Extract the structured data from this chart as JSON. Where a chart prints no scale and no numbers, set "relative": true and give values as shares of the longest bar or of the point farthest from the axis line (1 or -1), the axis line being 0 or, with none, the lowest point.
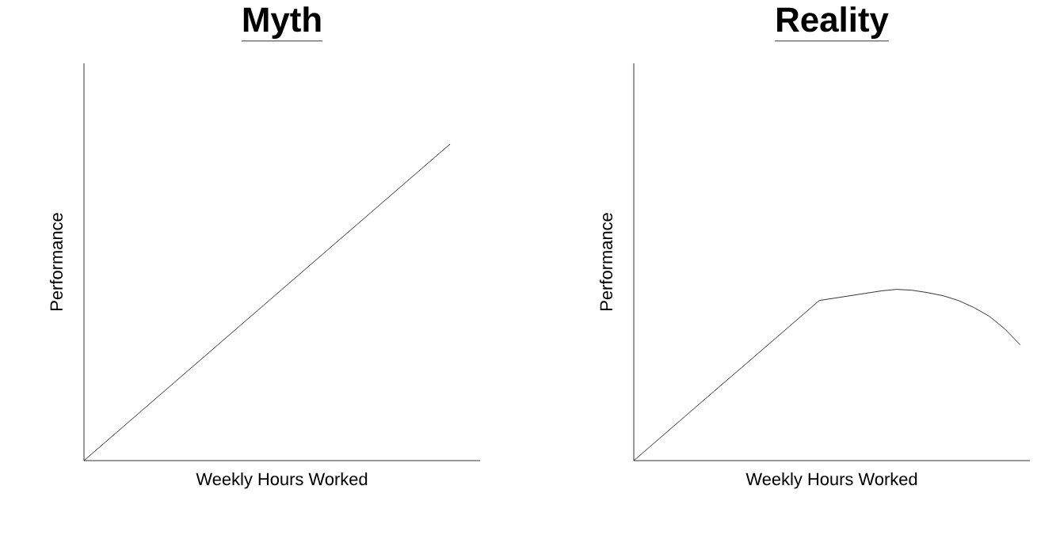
{
  "chart_data": [
    {
      "type": "line",
      "title": "Myth",
      "xlabel": "Weekly Hours Worked",
      "ylabel": "Performance",
      "relative": true,
      "categories": [
        null,
        null
      ],
      "values": [
        0,
        1
      ],
      "color": "#000000"
    },
    {
      "type": "line",
      "title": "Reality",
      "xlabel": "Weekly Hours Worked",
      "ylabel": "Performance",
      "relative": true,
      "categories": [
        null,
        null,
        null,
        null,
        null,
        null,
        null,
        null,
        null,
        null,
        null,
        null,
        null,
        null,
        null,
        null,
        null,
        null,
        null,
        null,
        null,
        null,
        null,
        null,
        null,
        null
      ],
      "values": [
        0,
        0.078,
        0.156,
        0.234,
        0.312,
        0.39,
        0.468,
        0.545,
        0.623,
        0.701,
        0.779,
        0.857,
        0.935,
        0.949,
        0.963,
        0.977,
        0.991,
        1,
        0.995,
        0.981,
        0.963,
        0.935,
        0.894,
        0.843,
        0.769,
        0.676
      ],
      "color": "#000000"
    }
  ]
}
